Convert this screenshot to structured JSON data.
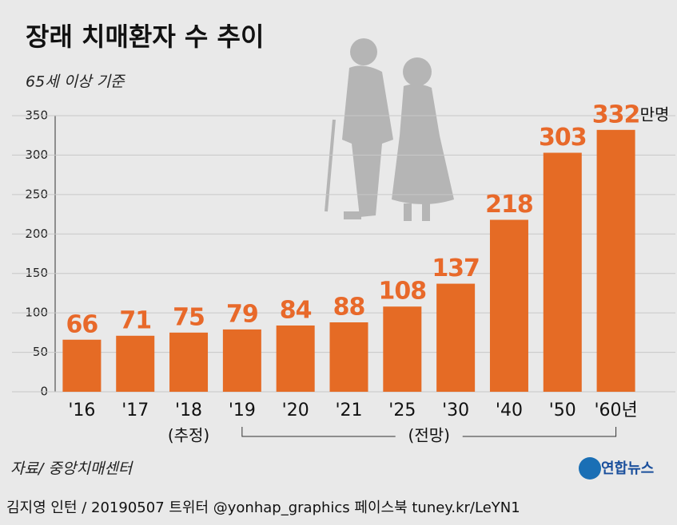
{
  "chart_data": {
    "type": "bar",
    "title": "장래 치매환자 수 추이",
    "subtitle": "65세 이상 기준",
    "unit": "만명",
    "categories": [
      "'16",
      "'17",
      "'18",
      "'19",
      "'20",
      "'21",
      "'25",
      "'30",
      "'40",
      "'50",
      "'60년"
    ],
    "values": [
      66,
      71,
      75,
      79,
      84,
      88,
      108,
      137,
      218,
      303,
      332
    ],
    "color": "#e56b25",
    "ylim": [
      0,
      350
    ],
    "yticks": [
      0,
      50,
      100,
      150,
      200,
      250,
      300,
      350
    ],
    "grid": true,
    "annotations": {
      "estimate": "(추정)",
      "forecast": "(전망)"
    }
  },
  "source": "자료/ 중앙치매센터",
  "logo": "연합뉴스",
  "credit": "김지영 인턴 / 20190507 트위터 @yonhap_graphics  페이스북 tuney.kr/LeYN1"
}
